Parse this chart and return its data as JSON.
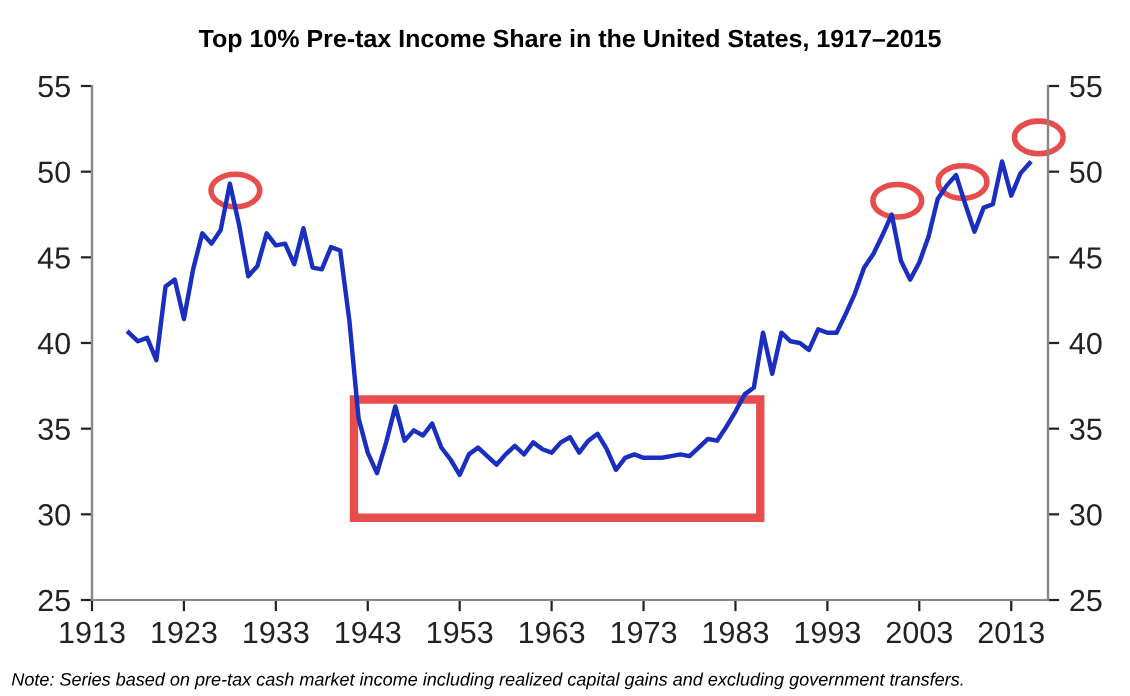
{
  "chart_data": {
    "type": "line",
    "title": "Top 10% Pre-tax Income Share in the United States, 1917–2015",
    "x": [
      1917,
      1918,
      1919,
      1920,
      1921,
      1922,
      1923,
      1924,
      1925,
      1926,
      1927,
      1928,
      1929,
      1930,
      1931,
      1932,
      1933,
      1934,
      1935,
      1936,
      1937,
      1938,
      1939,
      1940,
      1941,
      1942,
      1943,
      1944,
      1945,
      1946,
      1947,
      1948,
      1949,
      1950,
      1951,
      1952,
      1953,
      1954,
      1955,
      1956,
      1957,
      1958,
      1959,
      1960,
      1961,
      1962,
      1963,
      1964,
      1965,
      1966,
      1967,
      1968,
      1969,
      1970,
      1971,
      1972,
      1973,
      1974,
      1975,
      1976,
      1977,
      1978,
      1979,
      1980,
      1981,
      1982,
      1983,
      1984,
      1985,
      1986,
      1987,
      1988,
      1989,
      1990,
      1991,
      1992,
      1993,
      1994,
      1995,
      1996,
      1997,
      1998,
      1999,
      2000,
      2001,
      2002,
      2003,
      2004,
      2005,
      2006,
      2007,
      2008,
      2009,
      2010,
      2011,
      2012,
      2013,
      2014,
      2015
    ],
    "series": [
      {
        "color": "#1a2fbf",
        "values": [
          40.6,
          40.1,
          40.3,
          39.0,
          43.3,
          43.7,
          41.4,
          44.3,
          46.4,
          45.8,
          46.6,
          49.3,
          46.9,
          43.9,
          44.5,
          46.4,
          45.7,
          45.8,
          44.6,
          46.7,
          44.4,
          44.3,
          45.6,
          45.4,
          41.3,
          35.6,
          33.6,
          32.4,
          34.2,
          36.3,
          34.3,
          34.9,
          34.6,
          35.3,
          33.9,
          33.2,
          32.3,
          33.5,
          33.9,
          33.4,
          32.9,
          33.5,
          34.0,
          33.5,
          34.2,
          33.8,
          33.6,
          34.2,
          34.5,
          33.6,
          34.3,
          34.7,
          33.8,
          32.6,
          33.3,
          33.5,
          33.3,
          33.3,
          33.3,
          33.4,
          33.5,
          33.4,
          33.9,
          34.4,
          34.3,
          35.1,
          36.0,
          37.0,
          37.4,
          40.6,
          38.2,
          40.6,
          40.1,
          40.0,
          39.6,
          40.8,
          40.6,
          40.6,
          41.7,
          42.9,
          44.4,
          45.2,
          46.3,
          47.5,
          44.8,
          43.7,
          44.7,
          46.2,
          48.4,
          49.2,
          49.8,
          48.1,
          46.5,
          47.9,
          48.1,
          50.6,
          48.6,
          49.9,
          50.5
        ]
      }
    ],
    "xlim": [
      1913,
      2017
    ],
    "xticks": [
      1913,
      1923,
      1933,
      1943,
      1953,
      1963,
      1973,
      1983,
      1993,
      2003,
      2013
    ],
    "ylim": [
      25,
      55
    ],
    "yticks": [
      25,
      30,
      35,
      40,
      45,
      50,
      55
    ],
    "y2lim": [
      25,
      55
    ],
    "y2ticks": [
      25,
      30,
      35,
      40,
      45,
      50,
      55
    ],
    "line_style": "solid",
    "marker": "none",
    "grid": false,
    "legend": false,
    "annotations": [
      "Note: Series based on pre-tax cash market income including realized capital gains and excluding government transfers."
    ]
  }
}
